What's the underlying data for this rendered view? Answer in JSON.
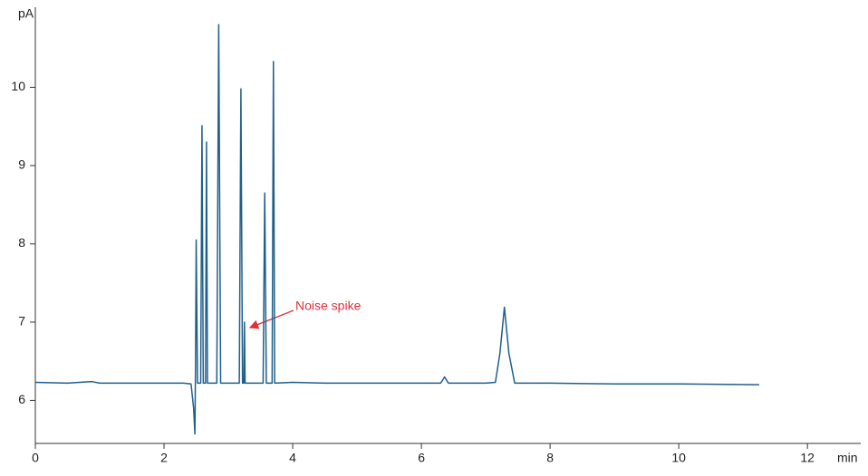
{
  "chart_data": {
    "type": "line",
    "x_label": "min",
    "y_label": "pA",
    "annotation": "Noise spike",
    "xlim": [
      0,
      12.8
    ],
    "ylim": [
      5.45,
      11.0
    ],
    "xticks": [
      0,
      2,
      4,
      6,
      8,
      10,
      12
    ],
    "yticks": [
      6,
      7,
      8,
      9,
      10
    ],
    "series": [
      {
        "color": "#1f5f8b",
        "x": [
          0,
          0.5,
          0.88,
          1.0,
          1.5,
          2.0,
          2.3,
          2.42,
          2.46,
          2.48,
          2.49,
          2.5,
          2.52,
          2.57,
          2.59,
          2.61,
          2.645,
          2.66,
          2.675,
          2.82,
          2.85,
          2.88,
          3.17,
          3.195,
          3.22,
          3.24,
          3.25,
          3.26,
          3.54,
          3.565,
          3.59,
          3.68,
          3.7,
          3.72,
          4.0,
          4.5,
          5.0,
          5.5,
          6.0,
          6.3,
          6.36,
          6.42,
          7.0,
          7.15,
          7.22,
          7.29,
          7.36,
          7.45,
          8.0,
          9.0,
          10.0,
          11.25
        ],
        "values": [
          6.23,
          6.22,
          6.24,
          6.22,
          6.22,
          6.22,
          6.22,
          6.21,
          5.9,
          5.57,
          6.5,
          8.05,
          6.22,
          6.22,
          9.51,
          6.22,
          6.22,
          9.3,
          6.22,
          6.22,
          10.8,
          6.22,
          6.22,
          9.98,
          6.22,
          6.22,
          7.0,
          6.22,
          6.22,
          8.65,
          6.22,
          6.22,
          10.33,
          6.22,
          6.23,
          6.22,
          6.22,
          6.22,
          6.22,
          6.22,
          6.3,
          6.22,
          6.22,
          6.23,
          6.6,
          7.19,
          6.6,
          6.22,
          6.22,
          6.21,
          6.21,
          6.2
        ]
      }
    ]
  }
}
